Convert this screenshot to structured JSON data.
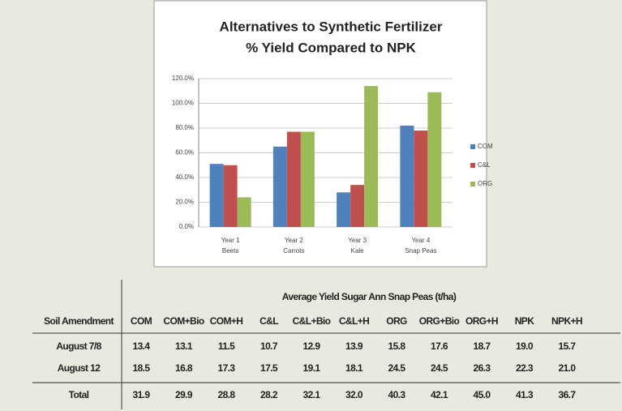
{
  "chart_data": {
    "type": "bar",
    "title": [
      "Alternatives to Synthetic Fertilizer",
      "% Yield Compared to NPK"
    ],
    "categories": [
      [
        "Year 1",
        "Beets"
      ],
      [
        "Year 2",
        "Carrots"
      ],
      [
        "Year 3",
        "Kale"
      ],
      [
        "Year 4",
        "Snap Peas"
      ]
    ],
    "series": [
      {
        "name": "COM",
        "color": "#4f81bd",
        "values": [
          51,
          65,
          28,
          82
        ]
      },
      {
        "name": "C&L",
        "color": "#c0504d",
        "values": [
          50,
          77,
          34,
          78
        ]
      },
      {
        "name": "ORG",
        "color": "#9bbb59",
        "values": [
          24,
          77,
          114,
          109
        ]
      }
    ],
    "ylim": [
      0,
      120
    ],
    "yticks": [
      {
        "value": 0,
        "label": "0.0%"
      },
      {
        "value": 20,
        "label": "20.0%"
      },
      {
        "value": 40,
        "label": "40.0%"
      },
      {
        "value": 60,
        "label": "60.0%"
      },
      {
        "value": 80,
        "label": "80.0%"
      },
      {
        "value": 100,
        "label": "100.0%"
      },
      {
        "value": 120,
        "label": "120.0%"
      }
    ],
    "grid": true,
    "legend": "right"
  },
  "table": {
    "title": "Average Yield Sugar Ann Snap Peas (t/ha)",
    "columns": [
      "Soil Amendment",
      "COM",
      "COM+Bio",
      "COM+H",
      "C&L",
      "C&L+Bio",
      "C&L+H",
      "ORG",
      "ORG+Bio",
      "ORG+H",
      "NPK",
      "NPK+H"
    ],
    "rows": [
      [
        "August 7/8",
        "13.4",
        "13.1",
        "11.5",
        "10.7",
        "12.9",
        "13.9",
        "15.8",
        "17.6",
        "18.7",
        "19.0",
        "15.7"
      ],
      [
        "August 12",
        "18.5",
        "16.8",
        "17.3",
        "17.5",
        "19.1",
        "18.1",
        "24.5",
        "24.5",
        "26.3",
        "22.3",
        "21.0"
      ],
      [
        "Total",
        "31.9",
        "29.9",
        "28.8",
        "28.2",
        "32.1",
        "32.0",
        "40.3",
        "42.1",
        "45.0",
        "41.3",
        "36.7"
      ]
    ]
  }
}
